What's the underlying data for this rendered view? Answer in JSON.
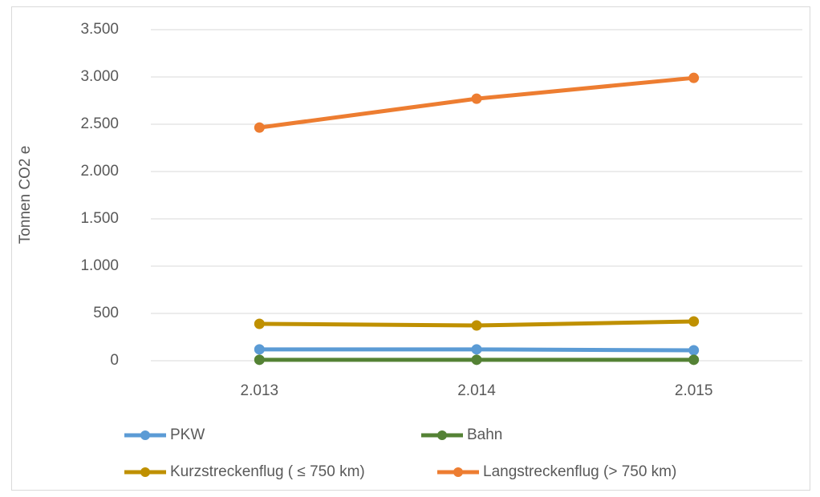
{
  "chart_data": {
    "type": "line",
    "ylabel": "Tonnen CO2 e",
    "categories": [
      "2.013",
      "2.014",
      "2.015"
    ],
    "series": [
      {
        "name": "PKW",
        "color": "#5b9bd5",
        "values": [
          120,
          120,
          110
        ]
      },
      {
        "name": "Bahn",
        "color": "#548235",
        "values": [
          10,
          10,
          10
        ]
      },
      {
        "name": "Kurzstreckenflug ( ≤ 750 km)",
        "color": "#bf9000",
        "values": [
          390,
          373,
          415
        ]
      },
      {
        "name": "Langstreckenflug (> 750 km)",
        "color": "#ed7d31",
        "values": [
          2465,
          2770,
          2990
        ]
      }
    ],
    "ylim": [
      0,
      3500
    ],
    "yticks": [
      0,
      500,
      {
        "value": 1000,
        "label": "1.000"
      },
      {
        "value": 1500,
        "label": "1.500"
      },
      {
        "value": 2000,
        "label": "2.000"
      },
      {
        "value": 2500,
        "label": "2.500"
      },
      {
        "value": 3000,
        "label": "3.000"
      },
      {
        "value": 3500,
        "label": "3.500"
      }
    ],
    "grid": true,
    "legend": "bottom"
  }
}
